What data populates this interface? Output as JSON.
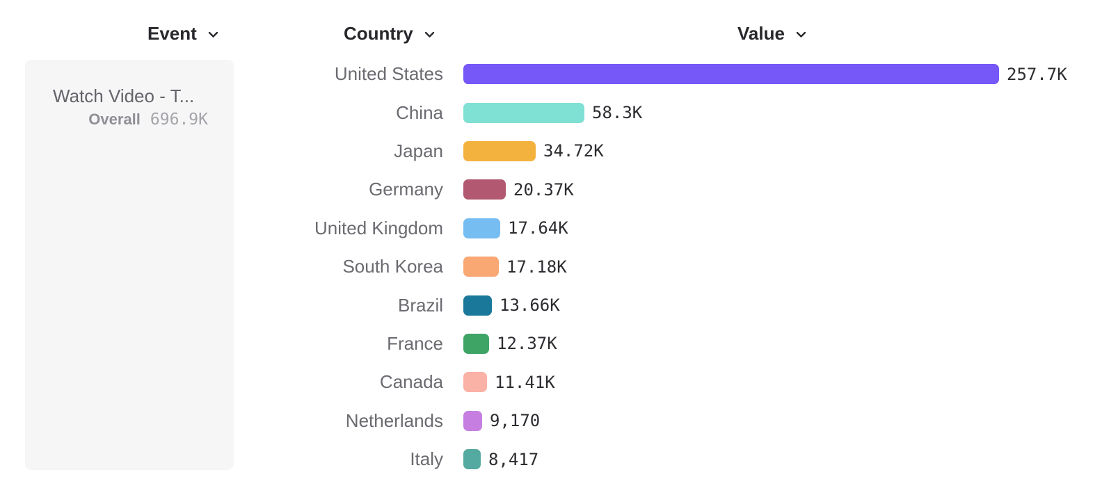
{
  "header": {
    "event_label": "Event",
    "country_label": "Country",
    "value_label": "Value"
  },
  "event_card": {
    "title": "Watch Video - T...",
    "metric_label": "Overall",
    "metric_value": "696.9K"
  },
  "chart_data": {
    "type": "bar",
    "orientation": "horizontal",
    "categories": [
      "United States",
      "China",
      "Japan",
      "Germany",
      "United Kingdom",
      "South Korea",
      "Brazil",
      "France",
      "Canada",
      "Netherlands",
      "Italy"
    ],
    "values": [
      257700,
      58300,
      34720,
      20370,
      17640,
      17180,
      13660,
      12370,
      11410,
      9170,
      8417
    ],
    "value_labels": [
      "257.7K",
      "58.3K",
      "34.72K",
      "20.37K",
      "17.64K",
      "17.18K",
      "13.66K",
      "12.37K",
      "11.41K",
      "9,170",
      "8,417"
    ],
    "colors": [
      "#7657F7",
      "#7FE0D4",
      "#F3B23E",
      "#B25871",
      "#76BDF2",
      "#F9A873",
      "#1A789B",
      "#3EA466",
      "#FBB2A6",
      "#C67FE1",
      "#54A9A0"
    ],
    "xlim": [
      0,
      257700
    ],
    "grid": false,
    "legend": "none"
  }
}
